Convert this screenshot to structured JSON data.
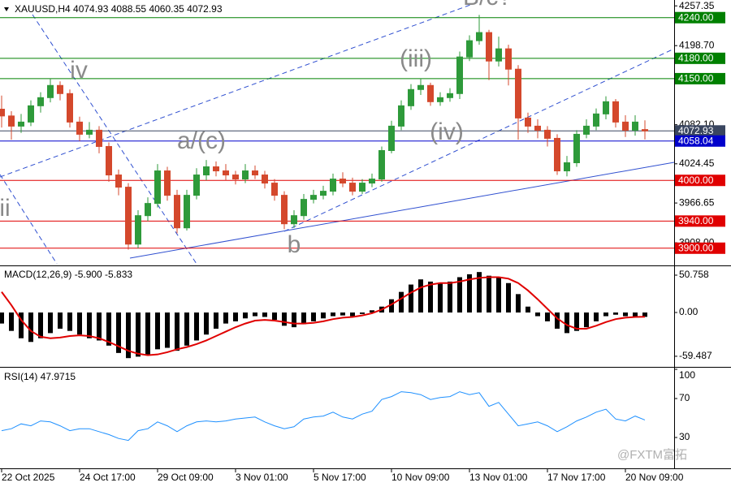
{
  "chart_data": [
    {
      "type": "candlestick",
      "title": "XAUUSD,H4  4074.93 4088.55 4060.35 4072.93",
      "categories": [
        "22 Oct 2025",
        null,
        null,
        null,
        null,
        null,
        null,
        null,
        "24 Oct 17:00",
        null,
        null,
        null,
        null,
        null,
        null,
        null,
        "29 Oct 09:00",
        null,
        null,
        null,
        null,
        null,
        null,
        null,
        "3 Nov 01:00",
        null,
        null,
        null,
        null,
        null,
        null,
        null,
        "5 Nov 17:00",
        null,
        null,
        null,
        null,
        null,
        null,
        null,
        "10 Nov 09:00",
        null,
        null,
        null,
        null,
        null,
        null,
        null,
        "13 Nov 01:00",
        null,
        null,
        null,
        null,
        null,
        null,
        null,
        "17 Nov 17:00",
        null,
        null,
        null,
        null,
        null,
        null,
        null,
        "20 Nov 09:00",
        null,
        null
      ],
      "open": [
        4105,
        4095,
        4080,
        4086,
        4110,
        4122,
        4140,
        4128,
        4086,
        4068,
        4074,
        4050,
        4008,
        3990,
        3906,
        3948,
        3966,
        4014,
        3978,
        3930,
        3978,
        4008,
        4020,
        4014,
        4008,
        4002,
        4014,
        4008,
        3996,
        3978,
        3936,
        3948,
        3972,
        3978,
        3984,
        4002,
        3996,
        3984,
        3996,
        4002,
        4044,
        4080,
        4110,
        4134,
        4140,
        4116,
        4122,
        4128,
        4182,
        4206,
        4218,
        4176,
        4194,
        4164,
        4092,
        4080,
        4074,
        4062,
        4014,
        4026,
        4068,
        4080,
        4098,
        4116,
        4086,
        4074,
        4074.93
      ],
      "high": [
        4125,
        4102,
        4098,
        4118,
        4130,
        4150,
        4146,
        4134,
        4094,
        4086,
        4080,
        4056,
        4016,
        3996,
        3956,
        3975,
        4024,
        4020,
        3986,
        3986,
        4018,
        4030,
        4028,
        4024,
        4014,
        4024,
        4022,
        4014,
        4002,
        3984,
        3956,
        3980,
        3986,
        3992,
        4010,
        4012,
        4004,
        4002,
        4010,
        4050,
        4088,
        4118,
        4142,
        4150,
        4144,
        4130,
        4136,
        4190,
        4214,
        4244,
        4222,
        4212,
        4200,
        4170,
        4100,
        4090,
        4080,
        4068,
        4036,
        4074,
        4090,
        4106,
        4124,
        4120,
        4096,
        4096,
        4088.55
      ],
      "low": [
        4078,
        4060,
        4070,
        4080,
        4100,
        4115,
        4118,
        4078,
        4058,
        4062,
        4040,
        3998,
        3978,
        3898,
        3900,
        3940,
        3960,
        3970,
        3922,
        3926,
        3972,
        4000,
        4006,
        4000,
        3994,
        3996,
        4002,
        3988,
        3970,
        3928,
        3930,
        3942,
        3966,
        3972,
        3978,
        3990,
        3978,
        3980,
        3990,
        3998,
        4040,
        4074,
        4104,
        4126,
        4110,
        4110,
        4116,
        4120,
        4176,
        4200,
        4148,
        4168,
        4140,
        4060,
        4070,
        4062,
        4050,
        4008,
        4006,
        4020,
        4062,
        4074,
        4090,
        4078,
        4064,
        4066,
        4060.35
      ],
      "close": [
        4095,
        4080,
        4086,
        4110,
        4122,
        4140,
        4128,
        4086,
        4068,
        4074,
        4050,
        4008,
        3990,
        3906,
        3948,
        3966,
        4014,
        3978,
        3930,
        3978,
        4008,
        4020,
        4014,
        4008,
        4002,
        4014,
        4008,
        3996,
        3978,
        3936,
        3948,
        3972,
        3978,
        3984,
        4002,
        3996,
        3984,
        3996,
        4002,
        4044,
        4080,
        4110,
        4134,
        4140,
        4116,
        4122,
        4128,
        4182,
        4206,
        4218,
        4176,
        4194,
        4164,
        4092,
        4080,
        4074,
        4062,
        4014,
        4026,
        4068,
        4080,
        4098,
        4116,
        4086,
        4074,
        4086,
        4072.93
      ],
      "up_color": "#2e9a3a",
      "down_color": "#d4482c",
      "ylim": [
        3877,
        4266
      ],
      "yticks": [
        4257.35,
        {
          "value": 4198.7,
          "label": "4198.70"
        },
        {
          "value": 4082.1,
          "label": "4082.10"
        },
        4024.45,
        3966.65,
        {
          "value": 3908,
          "label": "3908.00"
        }
      ],
      "levels": [
        {
          "value": 4240,
          "label": "4240.00",
          "color": "#008000"
        },
        {
          "value": 4180,
          "label": "4180.00",
          "color": "#008000"
        },
        {
          "value": 4150,
          "label": "4150.00",
          "color": "#008000"
        },
        {
          "value": 4072.93,
          "label": "4072.93",
          "color": "#3a4660"
        },
        {
          "value": 4058.04,
          "label": "4058.04",
          "color": "#0000cc"
        },
        {
          "value": 4000,
          "label": "4000.00",
          "color": "#e00000"
        },
        {
          "value": 3940,
          "label": "3940.00",
          "color": "#e00000"
        },
        {
          "value": 3900,
          "label": "3900.00",
          "color": "#e00000"
        }
      ],
      "annotations": [
        "ii",
        "iv",
        "a/(c)",
        "b",
        "(iii)",
        "(iv)",
        "B/c?"
      ]
    },
    {
      "type": "macd",
      "title": "MACD(12,26,9) -5.900 -5.833",
      "histogram": [
        -15,
        -25,
        -35,
        -40,
        -35,
        -28,
        -22,
        -25,
        -30,
        -35,
        -38,
        -45,
        -55,
        -62,
        -60,
        -58,
        -50,
        -48,
        -52,
        -45,
        -38,
        -30,
        -22,
        -15,
        -12,
        -8,
        -5,
        -6,
        -10,
        -18,
        -20,
        -16,
        -12,
        -8,
        -5,
        -4,
        -5,
        -2,
        3,
        8,
        18,
        28,
        38,
        45,
        42,
        40,
        42,
        48,
        52,
        55,
        50,
        48,
        40,
        25,
        8,
        -5,
        -12,
        -22,
        -28,
        -25,
        -20,
        -12,
        -5,
        -3,
        -5,
        -6,
        -5.9
      ],
      "signal": [
        28,
        10,
        -10,
        -25,
        -33,
        -35,
        -34,
        -32,
        -31,
        -32,
        -35,
        -40,
        -46,
        -52,
        -56,
        -58,
        -57,
        -54,
        -50,
        -47,
        -43,
        -38,
        -32,
        -26,
        -20,
        -15,
        -11,
        -10,
        -11,
        -13,
        -15,
        -15,
        -14,
        -12,
        -9,
        -7,
        -6,
        -4,
        -1,
        4,
        11,
        19,
        27,
        34,
        38,
        40,
        40,
        42,
        45,
        47,
        48,
        48,
        46,
        40,
        30,
        18,
        5,
        -8,
        -17,
        -22,
        -22,
        -18,
        -13,
        -9,
        -7,
        -6,
        -5.833
      ],
      "histogram_color": "#000000",
      "signal_color": "#e00000",
      "ylim": [
        -71.7,
        60.7
      ],
      "yticks": [
        50.758,
        {
          "value": 0,
          "label": "0.00"
        },
        -59.487
      ]
    },
    {
      "type": "line",
      "title": "RSI(14) 47.9715",
      "values": [
        37,
        39,
        44,
        42,
        47,
        46,
        42,
        37,
        39,
        39,
        36,
        33,
        29,
        27,
        37,
        39,
        46,
        42,
        36,
        42,
        46,
        47,
        46,
        47,
        49,
        50,
        51,
        46,
        42,
        39,
        41,
        49,
        51,
        52,
        56,
        51,
        49,
        54,
        57,
        69,
        72,
        77,
        76,
        74,
        69,
        71,
        72,
        77,
        74,
        76,
        62,
        66,
        54,
        42,
        44,
        46,
        42,
        36,
        41,
        47,
        51,
        56,
        59,
        49,
        47,
        52,
        47.9715
      ],
      "color": "#1e90ff",
      "ylim": [
        0,
        100
      ],
      "yticks": [
        100,
        70,
        30
      ]
    }
  ],
  "watermark": "@FXTM富拓"
}
